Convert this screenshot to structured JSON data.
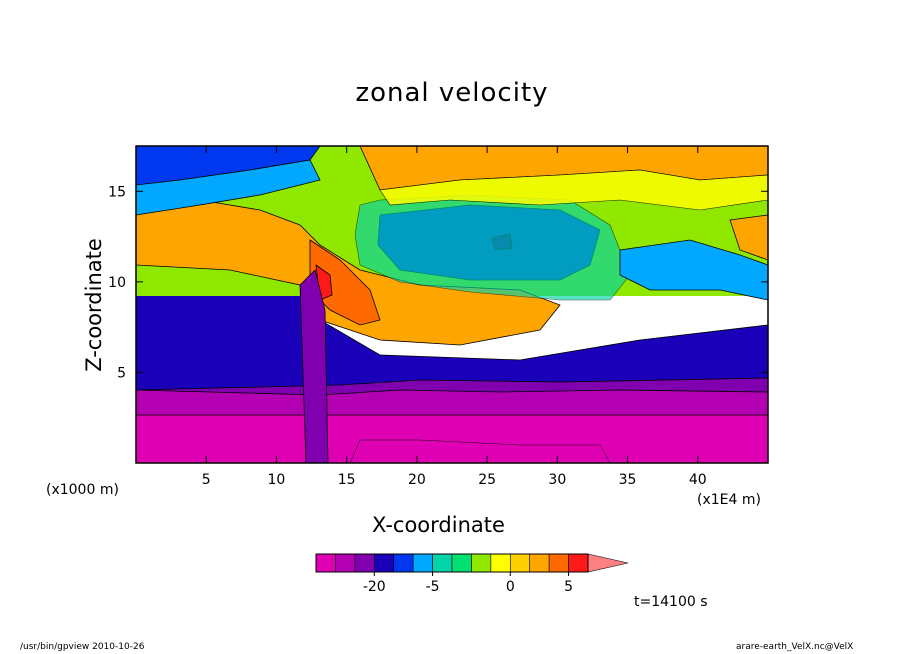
{
  "chart_data": {
    "type": "heatmap",
    "title": "zonal velocity",
    "xlabel": "X-coordinate",
    "ylabel": "Z-coordinate",
    "x_unit_left": "(x1000 m)",
    "x_unit_right": "(x1E4 m)",
    "xlim": [
      0,
      45
    ],
    "ylim": [
      0,
      17.5
    ],
    "xticks": [
      5,
      10,
      15,
      20,
      25,
      30,
      35,
      40
    ],
    "yticks": [
      5,
      10,
      15
    ],
    "colorbar": {
      "levels": [
        -30,
        -25,
        -20,
        -15,
        -10,
        -5,
        -3,
        -2,
        -1,
        0,
        1,
        2,
        5,
        10,
        15,
        20
      ],
      "colors": [
        "#e000b4",
        "#b300b3",
        "#8000b0",
        "#1a00b8",
        "#0038f0",
        "#00a8ff",
        "#00d4a8",
        "#00e070",
        "#90e800",
        "#ffff00",
        "#ffd000",
        "#ffa500",
        "#ff6a00",
        "#ff1a1a",
        "#ff8080"
      ],
      "labeled_ticks": [
        {
          "value": -20,
          "label": "-20"
        },
        {
          "value": -5,
          "label": "-5"
        },
        {
          "value": 0,
          "label": "0"
        },
        {
          "value": 5,
          "label": "5"
        }
      ]
    },
    "field_description_values": [
      {
        "x_range": [
          0,
          45
        ],
        "z_range": [
          0,
          2
        ],
        "value": -28
      },
      {
        "x_range": [
          0,
          45
        ],
        "z_range": [
          2,
          4
        ],
        "value": -22
      },
      {
        "x_range": [
          0,
          45
        ],
        "z_range": [
          4,
          8
        ],
        "value": -14
      },
      {
        "x_range": [
          0,
          12
        ],
        "z_range": [
          10,
          13
        ],
        "value": 6
      },
      {
        "x_range": [
          13,
          30
        ],
        "z_range": [
          7,
          11
        ],
        "value": 6
      },
      {
        "x_range": [
          17,
          33
        ],
        "z_range": [
          11,
          15
        ],
        "value": -10
      },
      {
        "x_range": [
          15,
          45
        ],
        "z_range": [
          15,
          17.5
        ],
        "value": 5
      }
    ],
    "annotation": "t=14100 s"
  },
  "footer": {
    "left": "/usr/bin/gpview   2010-10-26",
    "right": "arare-earth_VelX.nc@VelX"
  }
}
